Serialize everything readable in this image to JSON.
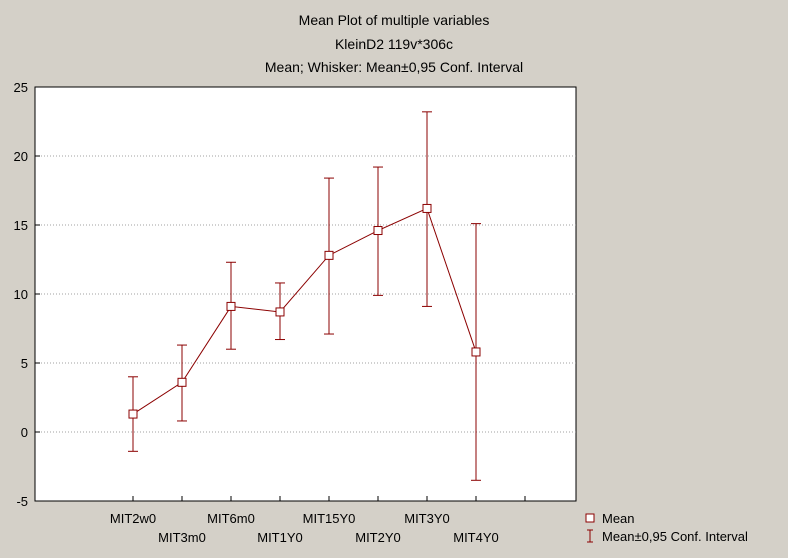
{
  "chart_data": {
    "type": "line",
    "title_lines": [
      "Mean Plot of multiple variables",
      "KleinD2 119v*306c",
      "Mean; Whisker: Mean±0,95 Conf. Interval"
    ],
    "xlabel": "",
    "ylabel": "",
    "categories": [
      "MIT2w0",
      "MIT3m0",
      "MIT6m0",
      "MIT1Y0",
      "MIT15Y0",
      "MIT2Y0",
      "MIT3Y0",
      "MIT4Y0"
    ],
    "series": [
      {
        "name": "Mean",
        "values": [
          1.3,
          3.6,
          9.1,
          8.7,
          12.8,
          14.6,
          16.2,
          5.8
        ],
        "ci_low": [
          -1.4,
          0.8,
          6.0,
          6.7,
          7.1,
          9.9,
          9.1,
          -3.5
        ],
        "ci_high": [
          4.0,
          6.3,
          12.3,
          10.8,
          18.4,
          19.2,
          23.2,
          15.1
        ]
      }
    ],
    "ylim": [
      -5,
      25
    ],
    "yticks": [
      -5,
      0,
      5,
      10,
      15,
      20,
      25
    ],
    "grid": true,
    "legend_position": "bottom-right",
    "legend": {
      "items": [
        {
          "label": "Mean",
          "marker": "square"
        },
        {
          "label": "Mean±0,95 Conf. Interval",
          "marker": "whisker"
        }
      ]
    },
    "colors": {
      "background": "#d4d0c8",
      "plot_background": "#ffffff",
      "series": "#8b0000",
      "grid": "#a0a0a0",
      "axis": "#000000"
    }
  }
}
